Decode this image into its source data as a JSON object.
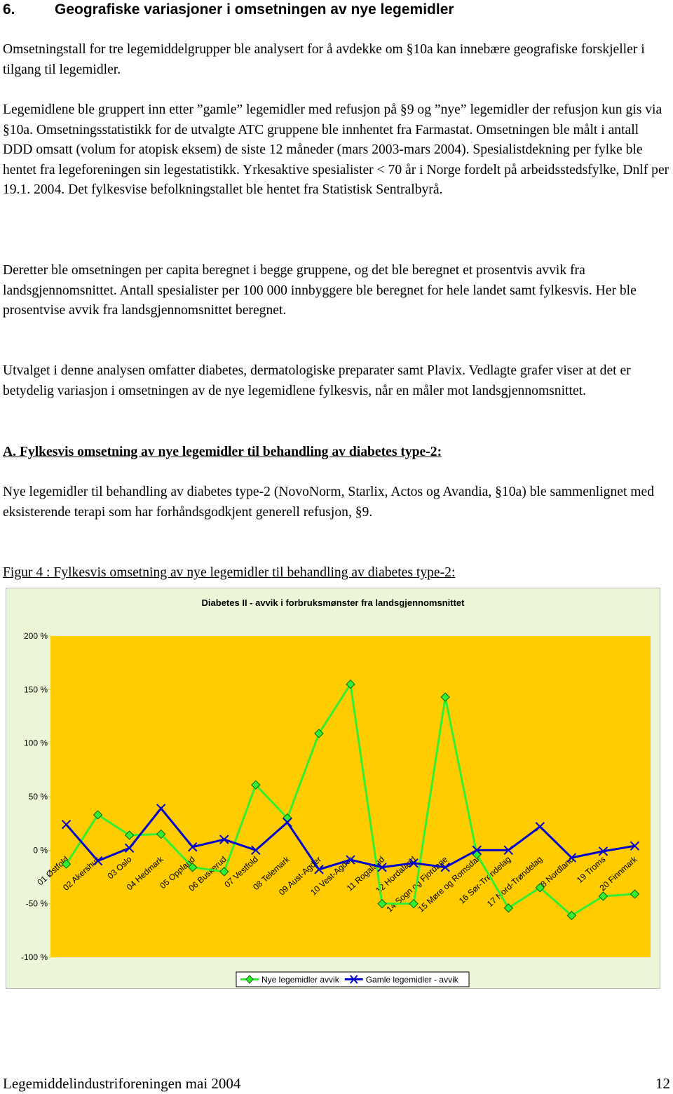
{
  "header": {
    "number": "6.",
    "title": "Geografiske variasjoner i omsetningen av nye legemidler"
  },
  "paragraphs": [
    "Omsetningstall for tre legemiddelgrupper ble analysert for å avdekke om §10a kan innebære geografiske forskjeller i tilgang til legemidler.",
    "Legemidlene ble gruppert inn etter ”gamle” legemidler med refusjon på §9 og ”nye” legemidler der refusjon kun gis via §10a. Omsetningsstatistikk for de utvalgte ATC gruppene ble innhentet fra Farmastat. Omsetningen ble målt i antall DDD omsatt (volum for atopisk eksem) de siste 12 måneder  (mars 2003-mars 2004). Spesialistdekning per fylke ble hentet fra legeforeningen sin legestatistikk. Yrkesaktive spesialister < 70 år i Norge fordelt på arbeidsstedsfylke, Dnlf per 19.1. 2004. Det fylkesvise befolkningstallet ble hentet fra Statistisk Sentralbyrå.",
    "Deretter ble omsetningen per capita beregnet i begge gruppene, og det ble beregnet et prosentvis avvik fra landsgjennomsnittet. Antall spesialister per 100 000 innbyggere ble beregnet for hele landet samt fylkesvis. Her ble prosentvise avvik fra landsgjennomsnittet beregnet.",
    "Utvalget i denne analysen omfatter diabetes, dermatologiske preparater samt Plavix. Vedlagte grafer viser at det er betydelig variasjon i omsetningen av de nye legemidlene fylkesvis, når en måler mot landsgjennomsnittet."
  ],
  "section": {
    "title": "A. Fylkesvis omsetning av nye legemidler til behandling av diabetes type-2:",
    "paragraph": "Nye legemidler til behandling av diabetes type-2 (NovoNorm, Starlix, Actos og Avandia, §10a) ble sammenlignet med eksisterende terapi som har forhåndsgodkjent generell refusjon, §9."
  },
  "figure_caption": "Figur 4 : Fylkesvis omsetning av nye legemidler til behandling av diabetes type-2:",
  "chart_data": {
    "type": "line",
    "title": "Diabetes II - avvik i forbruksmønster fra landsgjennomsnittet",
    "categories": [
      "01 Østfold",
      "02 Akershus",
      "03 Oslo",
      "04 Hedmark",
      "05 Oppland",
      "06 Buskerud",
      "07 Vestfold",
      "08 Telemark",
      "09 Aust-Agder",
      "10 Vest-Agder",
      "11 Rogaland",
      "12 Hordaland",
      "14 Sogn og Fjordane",
      "15 Møre og Romsdal",
      "16 Sør-Trøndelag",
      "17 Nord-Trøndelag",
      "18 Nordland",
      "19 Troms",
      "20 Finnmark"
    ],
    "series": [
      {
        "name": "Nye legemidler avvik",
        "color": "#33ee33",
        "marker": "diamond",
        "values": [
          -13,
          33,
          14,
          15,
          -16,
          -20,
          61,
          30,
          109,
          155,
          -50,
          -50,
          143,
          -4,
          -54,
          -35,
          -61,
          -43,
          -41
        ]
      },
      {
        "name": "Gamle legemidler - avvik",
        "color": "#0000cc",
        "marker": "cross",
        "values": [
          24,
          -10,
          2,
          39,
          3,
          10,
          0,
          26,
          -18,
          -9,
          -16,
          -12,
          -16,
          0,
          0,
          22,
          -7,
          -1,
          4
        ]
      }
    ],
    "ylim": [
      -100,
      200
    ],
    "yticks": [
      {
        "value": -100,
        "label": "-100 %"
      },
      {
        "value": -50,
        "label": "-50 %"
      },
      {
        "value": 0,
        "label": "0 %"
      },
      {
        "value": 50,
        "label": "50 %"
      },
      {
        "value": 100,
        "label": "100 %"
      },
      {
        "value": 150,
        "label": "150 %"
      },
      {
        "value": 200,
        "label": "200 %"
      }
    ],
    "legend": "bottom",
    "plot_background": "#ffcc00",
    "background": "#eaf6d6"
  },
  "footer": {
    "left": "Legemiddelindustriforeningen mai 2004",
    "page": "12"
  }
}
